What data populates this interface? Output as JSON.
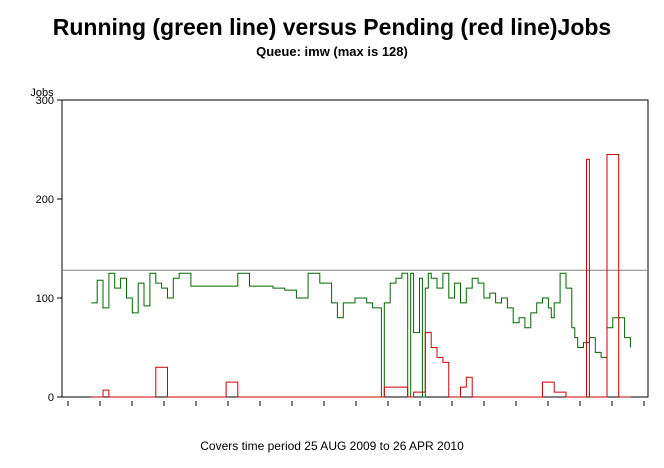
{
  "chart_data": {
    "type": "line",
    "title": "Running (green line) versus Pending (red line)Jobs",
    "subtitle": "Queue: imw (max is 128)",
    "ylabel": "Jobs",
    "xlabel": "",
    "footnote": "Covers time period 25 AUG 2009 to 26 APR 2010",
    "ylim": [
      0,
      300
    ],
    "yticks": [
      0,
      100,
      200,
      300
    ],
    "xlim": [
      0,
      1
    ],
    "x_tick_count": 19,
    "reference_line": {
      "value": 128,
      "color": "#808080"
    },
    "grid": false,
    "series": [
      {
        "name": "Running",
        "color": "#006600",
        "x": [
          0.05,
          0.06,
          0.07,
          0.08,
          0.09,
          0.1,
          0.11,
          0.12,
          0.13,
          0.14,
          0.15,
          0.16,
          0.17,
          0.18,
          0.19,
          0.2,
          0.22,
          0.24,
          0.26,
          0.28,
          0.3,
          0.32,
          0.34,
          0.36,
          0.38,
          0.4,
          0.42,
          0.44,
          0.46,
          0.47,
          0.48,
          0.5,
          0.52,
          0.53,
          0.54,
          0.545,
          0.55,
          0.56,
          0.57,
          0.58,
          0.59,
          0.595,
          0.6,
          0.61,
          0.615,
          0.62,
          0.625,
          0.63,
          0.64,
          0.65,
          0.66,
          0.67,
          0.68,
          0.69,
          0.7,
          0.71,
          0.72,
          0.73,
          0.74,
          0.75,
          0.76,
          0.77,
          0.78,
          0.79,
          0.8,
          0.81,
          0.82,
          0.83,
          0.835,
          0.84,
          0.85,
          0.86,
          0.87,
          0.875,
          0.88,
          0.89,
          0.9,
          0.91,
          0.92,
          0.93,
          0.94,
          0.95,
          0.96,
          0.97
        ],
        "values": [
          95,
          118,
          90,
          125,
          110,
          120,
          100,
          85,
          115,
          92,
          125,
          115,
          110,
          100,
          120,
          125,
          112,
          112,
          112,
          112,
          125,
          112,
          112,
          110,
          108,
          100,
          125,
          115,
          95,
          80,
          95,
          100,
          95,
          90,
          90,
          0,
          95,
          115,
          120,
          125,
          0,
          125,
          65,
          120,
          0,
          110,
          125,
          120,
          110,
          125,
          100,
          115,
          95,
          110,
          120,
          115,
          100,
          105,
          95,
          100,
          90,
          75,
          80,
          70,
          85,
          95,
          100,
          90,
          80,
          95,
          125,
          110,
          70,
          60,
          50,
          55,
          60,
          45,
          40,
          70,
          80,
          80,
          60,
          50
        ]
      },
      {
        "name": "Pending",
        "color": "#cc0000",
        "x": [
          0.05,
          0.07,
          0.08,
          0.1,
          0.12,
          0.14,
          0.16,
          0.18,
          0.2,
          0.24,
          0.26,
          0.28,
          0.3,
          0.32,
          0.36,
          0.4,
          0.44,
          0.48,
          0.5,
          0.52,
          0.55,
          0.59,
          0.6,
          0.62,
          0.63,
          0.64,
          0.65,
          0.66,
          0.67,
          0.68,
          0.69,
          0.7,
          0.72,
          0.74,
          0.76,
          0.78,
          0.8,
          0.82,
          0.84,
          0.86,
          0.88,
          0.895,
          0.9,
          0.91,
          0.93,
          0.95,
          0.96,
          0.97
        ],
        "values": [
          0,
          7,
          0,
          0,
          0,
          0,
          30,
          0,
          0,
          0,
          0,
          15,
          0,
          0,
          0,
          0,
          0,
          0,
          0,
          0,
          10,
          0,
          5,
          65,
          50,
          40,
          35,
          0,
          0,
          10,
          20,
          0,
          0,
          0,
          0,
          0,
          0,
          15,
          5,
          0,
          0,
          240,
          0,
          0,
          245,
          0,
          0,
          0
        ]
      }
    ]
  }
}
